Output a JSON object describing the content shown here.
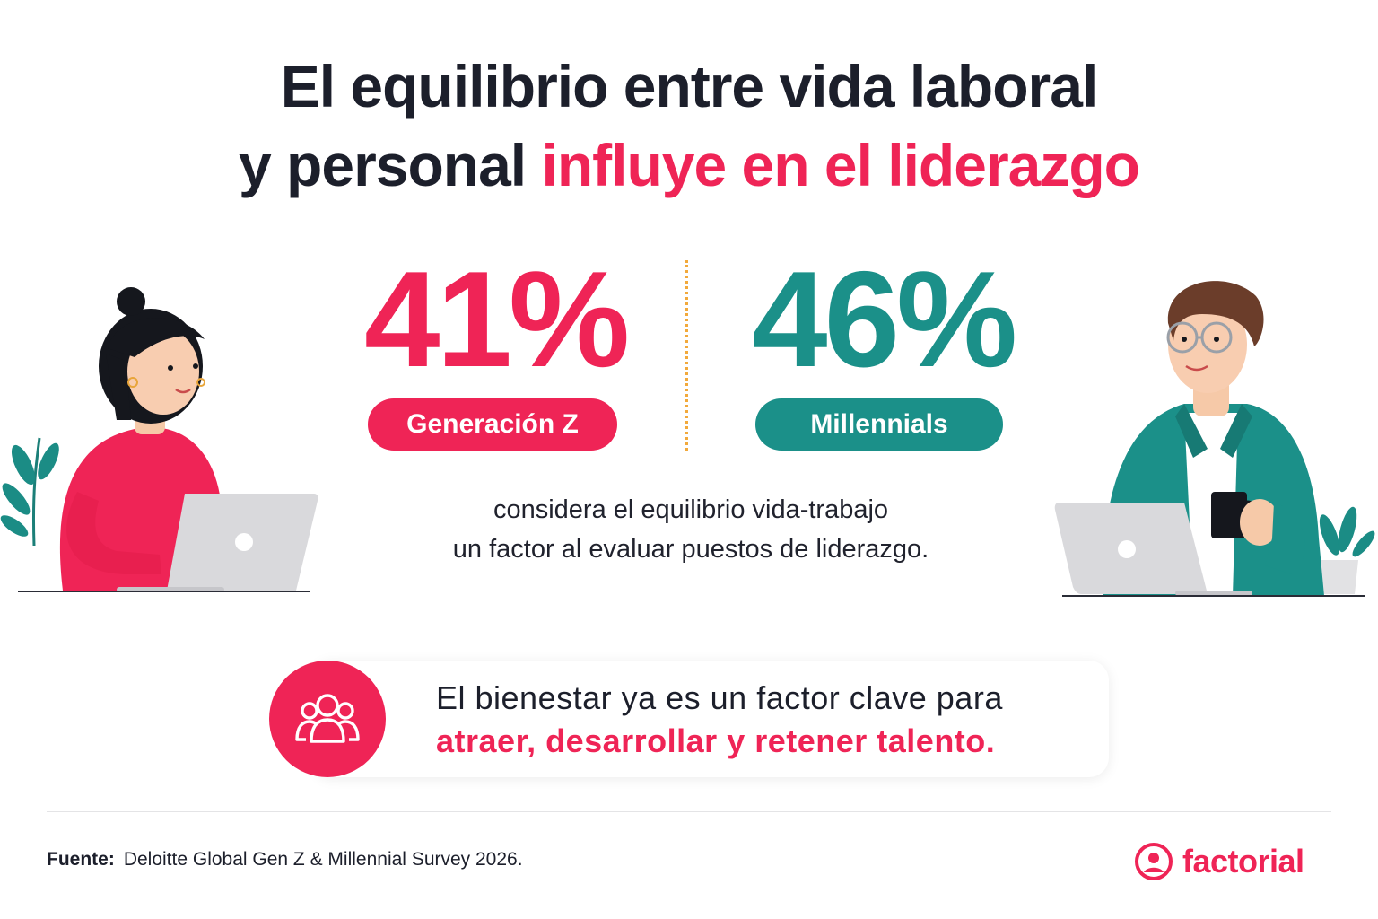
{
  "headline": {
    "line1": "El equilibrio entre vida laboral",
    "line2_plain": "y personal ",
    "line2_accent": "influye en el liderazgo"
  },
  "stats": [
    {
      "value": "41%",
      "label": "Generación Z",
      "color": "#ef2456"
    },
    {
      "value": "46%",
      "label": "Millennials",
      "color": "#1b9089"
    }
  ],
  "description": {
    "line1": "considera el equilibrio vida-trabajo",
    "line2": "un factor al evaluar puestos de liderazgo."
  },
  "callout": {
    "icon": "group-icon",
    "line1": "El bienestar ya es un factor clave para",
    "line2": "atraer, desarrollar y retener talento."
  },
  "footer": {
    "source_label": "Fuente:",
    "source_text": "Deloitte Global Gen Z & Millennial Survey 2026.",
    "brand": "factorial",
    "brand_icon": "factorial-logo-icon"
  },
  "colors": {
    "accent": "#ef2456",
    "teal": "#1b9089",
    "divider": "#f2a93b",
    "text": "#1c1f2b"
  },
  "illustrations": {
    "left": "woman-with-laptop-illustration",
    "right": "man-with-laptop-and-mug-illustration"
  }
}
